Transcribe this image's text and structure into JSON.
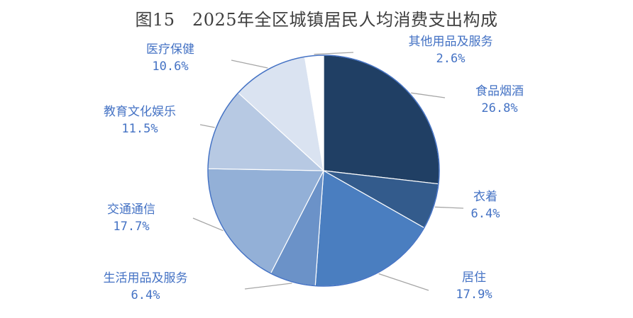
{
  "chart_data": {
    "type": "pie",
    "title": "图15　2025年全区城镇居民人均消费支出构成",
    "slices": [
      {
        "label": "食品烟酒",
        "value": 26.8,
        "value_text": "26.8%",
        "color": "#203f64"
      },
      {
        "label": "衣着",
        "value": 6.4,
        "value_text": "6.4%",
        "color": "#335b8c"
      },
      {
        "label": "居住",
        "value": 17.9,
        "value_text": "17.9%",
        "color": "#4a7ec0"
      },
      {
        "label": "生活用品及服务",
        "value": 6.4,
        "value_text": "6.4%",
        "color": "#6b92c8"
      },
      {
        "label": "交通通信",
        "value": 17.7,
        "value_text": "17.7%",
        "color": "#93b0d7"
      },
      {
        "label": "教育文化娱乐",
        "value": 11.5,
        "value_text": "11.5%",
        "color": "#b7c9e3"
      },
      {
        "label": "医疗保健",
        "value": 10.6,
        "value_text": "10.6%",
        "color": "#dae3f1"
      },
      {
        "label": "其他用品及服务",
        "value": 2.6,
        "value_text": "2.6%",
        "color": "#ffffff"
      }
    ],
    "start_angle": "12 o'clock",
    "direction": "clockwise",
    "border_color": "#4472c4",
    "label_color": "#4472c4",
    "leader_line_color": "#a6a6a6"
  }
}
